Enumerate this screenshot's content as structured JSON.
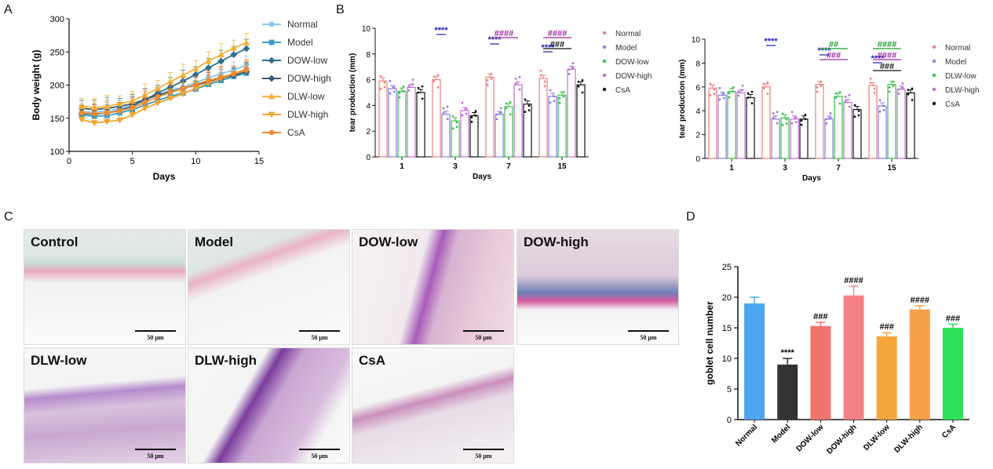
{
  "panels": {
    "a": "A",
    "b": "B",
    "c": "C",
    "d": "D"
  },
  "colors": {
    "normal": "#8ec5e6",
    "model": "#3a9cc7",
    "dow_low": "#2f6f8c",
    "dow_high": "#3d5a6e",
    "dlw_low": "#f0b43a",
    "dlw_high": "#f0a52e",
    "csa": "#f08a30",
    "b_normal": "#f07f7f",
    "b_model": "#8a7fe0",
    "b_low": "#39c14a",
    "b_high": "#c06ed6",
    "b_csa": "#111111",
    "sig_blue": "#1d1db8",
    "sig_purple": "#9b2aa3",
    "sig_green": "#1f9a2f"
  },
  "chart_data": [
    {
      "id": "A",
      "type": "line",
      "title": "",
      "xlabel": "Days",
      "ylabel": "Body weight (g)",
      "xlim": [
        0,
        15
      ],
      "ylim": [
        100,
        300
      ],
      "xticks": [
        0,
        5,
        10,
        15
      ],
      "yticks": [
        100,
        150,
        200,
        250,
        300
      ],
      "x": [
        1,
        2,
        3,
        4,
        5,
        6,
        7,
        8,
        9,
        10,
        11,
        12,
        13,
        14
      ],
      "series": [
        {
          "name": "Normal",
          "marker": "circle",
          "color": "#8ec5e6",
          "values": [
            160,
            159,
            161,
            165,
            170,
            178,
            185,
            192,
            197,
            204,
            211,
            217,
            223,
            230
          ]
        },
        {
          "name": "Model",
          "marker": "square",
          "color": "#3a9cc7",
          "values": [
            155,
            153,
            154,
            158,
            163,
            170,
            177,
            183,
            188,
            194,
            201,
            207,
            213,
            218
          ]
        },
        {
          "name": "DOW-low",
          "marker": "diamond",
          "color": "#2f6f8c",
          "values": [
            157,
            156,
            158,
            162,
            168,
            178,
            188,
            197,
            206,
            216,
            226,
            236,
            246,
            255
          ]
        },
        {
          "name": "DOW-high",
          "marker": "diamond",
          "color": "#3d5a6e",
          "values": [
            165,
            163,
            165,
            168,
            172,
            178,
            185,
            190,
            195,
            200,
            205,
            210,
            215,
            220
          ]
        },
        {
          "name": "DLW-low",
          "marker": "triangle-up",
          "color": "#f0b43a",
          "values": [
            168,
            166,
            168,
            172,
            176,
            185,
            195,
            205,
            215,
            225,
            236,
            246,
            256,
            264
          ]
        },
        {
          "name": "DLW-high",
          "marker": "triangle-down",
          "color": "#f0a52e",
          "values": [
            148,
            143,
            145,
            147,
            155,
            165,
            173,
            180,
            187,
            195,
            203,
            210,
            217,
            222
          ]
        },
        {
          "name": "CsA",
          "marker": "circle",
          "color": "#f08a30",
          "values": [
            158,
            157,
            158,
            161,
            166,
            174,
            182,
            189,
            195,
            201,
            207,
            212,
            217,
            224
          ]
        }
      ]
    },
    {
      "id": "B1",
      "type": "bar",
      "xlabel": "Days",
      "ylabel": "tear production (mm)",
      "ylim": [
        0,
        10
      ],
      "yticks": [
        0,
        2,
        4,
        6,
        8,
        10
      ],
      "categories": [
        "1",
        "3",
        "7",
        "15"
      ],
      "series": [
        {
          "name": "Normal",
          "values": [
            5.9,
            6.0,
            6.2,
            6.1
          ]
        },
        {
          "name": "Model",
          "values": [
            5.3,
            3.3,
            3.3,
            4.7
          ]
        },
        {
          "name": "DOW-low",
          "values": [
            5.1,
            2.8,
            3.9,
            4.8
          ]
        },
        {
          "name": "DOW-high",
          "values": [
            5.4,
            3.6,
            5.6,
            6.8
          ]
        },
        {
          "name": "CsA",
          "values": [
            5.0,
            3.2,
            4.1,
            5.6
          ]
        }
      ],
      "annotations": [
        {
          "group": "3",
          "text": "****",
          "color": "blue",
          "level": 0
        },
        {
          "group": "7",
          "text": "****",
          "color": "blue",
          "level": 0
        },
        {
          "group": "7",
          "text": "####",
          "color": "purple",
          "level": 1
        },
        {
          "group": "15",
          "text": "****",
          "color": "blue",
          "level": 0
        },
        {
          "group": "15",
          "text": "####",
          "color": "purple",
          "level": 1
        },
        {
          "group": "15",
          "text": "###",
          "color": "black",
          "level": 2
        }
      ]
    },
    {
      "id": "B2",
      "type": "bar",
      "xlabel": "Days",
      "ylabel": "tear production (mm)",
      "ylim": [
        0,
        10
      ],
      "yticks": [
        0,
        2,
        4,
        6,
        8,
        10
      ],
      "categories": [
        "1",
        "3",
        "7",
        "15"
      ],
      "series": [
        {
          "name": "Normal",
          "values": [
            5.9,
            6.0,
            6.2,
            6.1
          ]
        },
        {
          "name": "Model",
          "values": [
            5.3,
            3.3,
            3.3,
            4.4
          ]
        },
        {
          "name": "DLW-low",
          "values": [
            5.6,
            3.4,
            5.2,
            6.2
          ]
        },
        {
          "name": "DLW-high",
          "values": [
            5.5,
            3.3,
            4.7,
            5.8
          ]
        },
        {
          "name": "CsA",
          "values": [
            5.1,
            3.3,
            4.1,
            5.5
          ]
        }
      ],
      "annotations": [
        {
          "group": "3",
          "text": "****",
          "color": "blue",
          "level": 0
        },
        {
          "group": "7",
          "text": "****",
          "color": "blue",
          "level": 0
        },
        {
          "group": "7",
          "text": "##",
          "color": "green",
          "level": 1
        },
        {
          "group": "7",
          "text": "###",
          "color": "purple",
          "level": 2
        },
        {
          "group": "15",
          "text": "****",
          "color": "blue",
          "level": 0
        },
        {
          "group": "15",
          "text": "####",
          "color": "green",
          "level": 1
        },
        {
          "group": "15",
          "text": "####",
          "color": "purple",
          "level": 2
        },
        {
          "group": "15",
          "text": "###",
          "color": "black",
          "level": 3
        }
      ]
    },
    {
      "id": "D",
      "type": "bar",
      "xlabel": "",
      "ylabel": "goblet cell number",
      "ylim": [
        0,
        25
      ],
      "yticks": [
        0,
        5,
        10,
        15,
        20,
        25
      ],
      "categories": [
        "Normal",
        "Model",
        "DOW-low",
        "DOW-high",
        "DLW-low",
        "DLW-high",
        "CsA"
      ],
      "values": [
        19.0,
        9.0,
        15.3,
        20.3,
        13.6,
        18.0,
        15.0
      ],
      "errors": [
        1.0,
        1.0,
        0.6,
        1.5,
        0.6,
        0.6,
        0.6
      ],
      "colors": [
        "#4ea5f0",
        "#333333",
        "#f0746e",
        "#f58286",
        "#f5a63a",
        "#f5a048",
        "#2ee05a"
      ],
      "labels": [
        "",
        "****",
        "###",
        "####",
        "###",
        "####",
        "###"
      ]
    }
  ],
  "histology": [
    {
      "label": "Control",
      "scale": "50 μm"
    },
    {
      "label": "Model",
      "scale": "50 μm"
    },
    {
      "label": "DOW-low",
      "scale": "50 μm"
    },
    {
      "label": "DOW-high",
      "scale": "50 μm"
    },
    {
      "label": "DLW-low",
      "scale": "50 μm"
    },
    {
      "label": "DLW-high",
      "scale": "50 μm"
    },
    {
      "label": "CsA",
      "scale": "50 μm"
    }
  ]
}
